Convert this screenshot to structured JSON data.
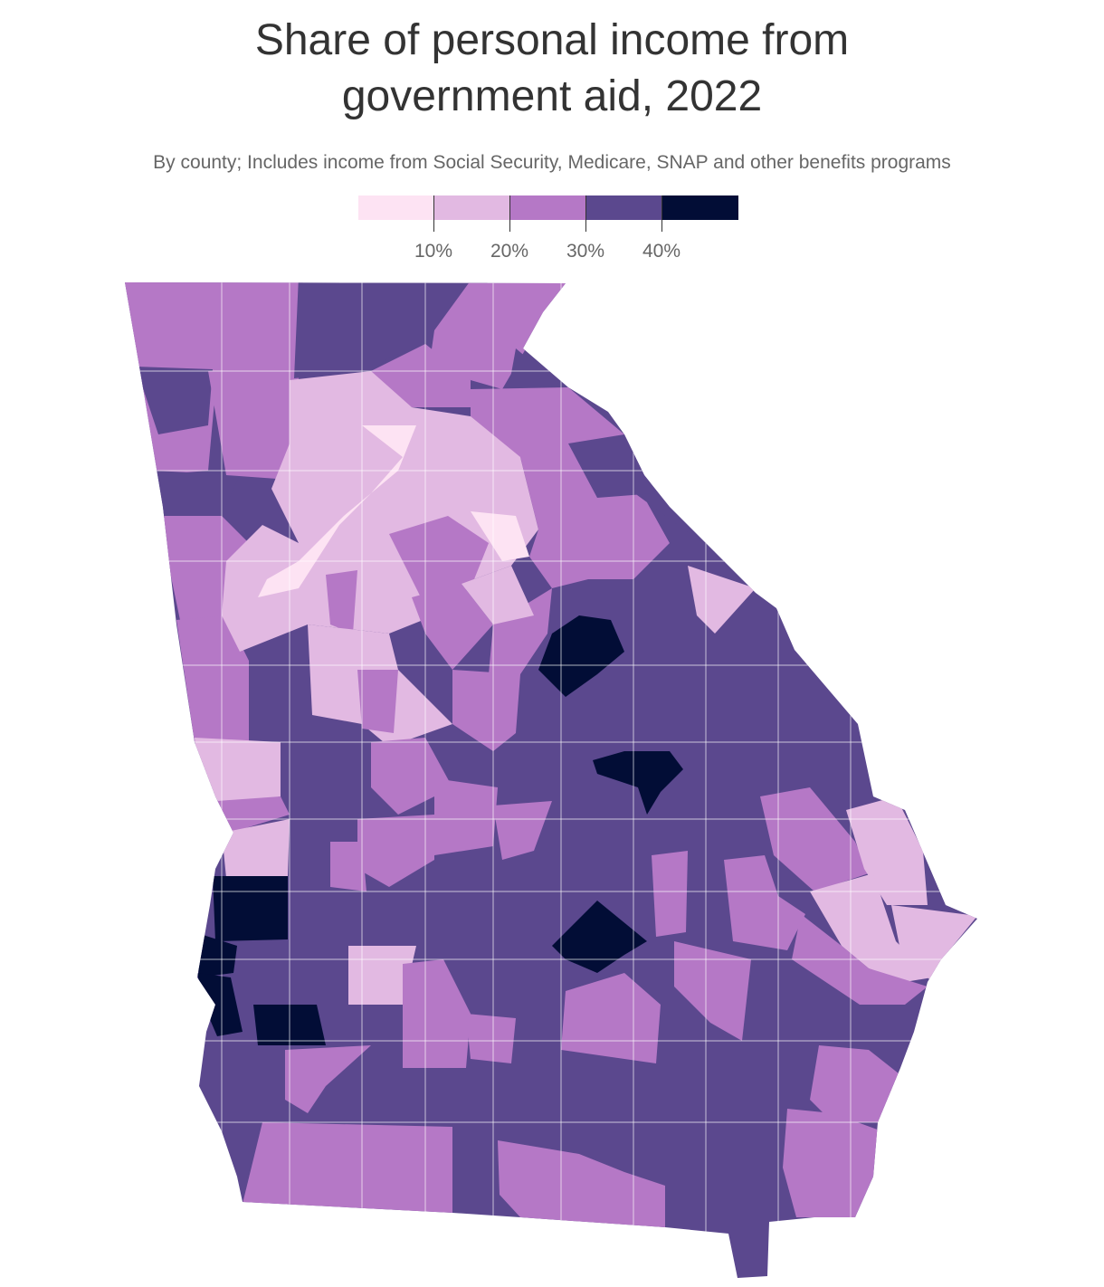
{
  "title_line1": "Share of personal income from",
  "title_line2": "government aid, 2022",
  "subtitle": "By county; Includes income from Social Security, Medicare, SNAP and other benefits programs",
  "legend": {
    "bins": [
      {
        "from": 0,
        "to": 10,
        "color": "#fde3f3"
      },
      {
        "from": 10,
        "to": 20,
        "color": "#e2b9e2"
      },
      {
        "from": 20,
        "to": 30,
        "color": "#b578c6"
      },
      {
        "from": 30,
        "to": 40,
        "color": "#5b488e"
      },
      {
        "from": 40,
        "to": 50,
        "color": "#020d36"
      }
    ],
    "tick_labels": [
      "10%",
      "20%",
      "30%",
      "40%"
    ]
  },
  "map": {
    "region": "Georgia",
    "unit": "county",
    "border_color": "#ffffff"
  }
}
